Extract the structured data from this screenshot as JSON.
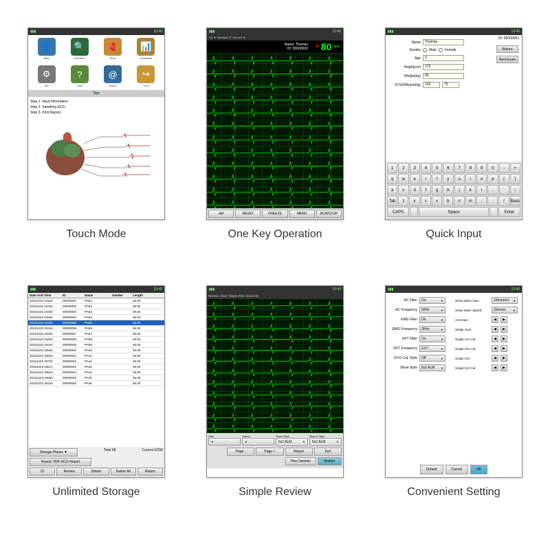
{
  "captions": {
    "touch": "Touch Mode",
    "onekey": "One Key Operation",
    "quick": "Quick Input",
    "storage": "Unlimited Storage",
    "review": "Simple Review",
    "setting": "Convenient Setting"
  },
  "statusbar": {
    "left": "▮▮▮",
    "time": "13:40",
    "signal": "📶"
  },
  "touch": {
    "icons": [
      {
        "bg": "#3876a8",
        "glyph": "👤",
        "label": "New"
      },
      {
        "bg": "#2a6a3c",
        "glyph": "🔍",
        "label": "Retrieve"
      },
      {
        "bg": "#c88838",
        "glyph": "🫀",
        "label": "Phys"
      },
      {
        "bg": "#a8843c",
        "glyph": "📊",
        "label": "Auto/Man"
      },
      {
        "bg": "#787878",
        "glyph": "⚙",
        "label": "Set"
      },
      {
        "bg": "#5a8a3a",
        "glyph": "?",
        "label": "Help"
      },
      {
        "bg": "#356a9a",
        "glyph": "@",
        "label": "About"
      },
      {
        "bg": "#c89838",
        "glyph": "↪",
        "label": "Exit"
      }
    ],
    "tips_label": "Tips",
    "steps": [
      "Step 1. Input Information.",
      "Step 2. Sampling ECG.",
      "Step 3. Print Report."
    ]
  },
  "ecg": {
    "name_label": "Name: Thomas",
    "id_label": "ID: 00000003",
    "hrate": "80",
    "bpm": "bpm",
    "heart": "♥",
    "buttons": [
      "def",
      "RESET",
      "FREEZE",
      "MENU",
      "RUN/STOP"
    ],
    "grid_color": "#0a3a0a",
    "bg_color": "#001a00",
    "trace_color": "#0f0",
    "leads": 12
  },
  "quick": {
    "fields": {
      "name": {
        "label": "Name",
        "value": "Thomas"
      },
      "gender": {
        "label": "Gender",
        "opts": [
          "Male",
          "Female"
        ]
      },
      "age": {
        "label": "Age",
        "value": "0"
      },
      "height": {
        "label": "Height(cm)",
        "value": "170"
      },
      "weight": {
        "label": "Weight(kg)",
        "value": "60"
      },
      "bp": {
        "label": "SYS/DIA(mmHg)",
        "sys": "120",
        "dia": "75"
      }
    },
    "id_label": "ID: 00000003",
    "side_btns": [
      "Return",
      "Next Exam"
    ],
    "keys": {
      "row1": [
        "1",
        "2",
        "3",
        "4",
        "5",
        "6",
        "7",
        "8",
        "9",
        "0",
        "-",
        "="
      ],
      "row2": [
        "q",
        "w",
        "e",
        "r",
        "t",
        "y",
        "u",
        "i",
        "o",
        "p",
        "[",
        "]"
      ],
      "row3": [
        "a",
        "s",
        "d",
        "f",
        "g",
        "h",
        "j",
        "k",
        "l",
        ";",
        "'",
        "\\"
      ],
      "row4": [
        "Tab",
        "z",
        "x",
        "c",
        "v",
        "b",
        "n",
        "m",
        ",",
        ".",
        "/",
        "Back"
      ],
      "row5": [
        "CAPS",
        "",
        "Space",
        "",
        "Enter"
      ]
    }
  },
  "storage": {
    "headers": [
      "Date And Time",
      "ID",
      "Name",
      "Gender",
      "Length"
    ],
    "rows": [
      [
        "20161223 12344",
        "00000001",
        "PAE1",
        "",
        "36.00"
      ],
      [
        "20161223 12444",
        "00000002",
        "PAE2",
        "",
        "36.00"
      ],
      [
        "20161223 24333",
        "00000003",
        "PAE3",
        "",
        "36.00"
      ],
      [
        "20161223 24534",
        "00000004",
        "PAE4",
        "",
        "36.00"
      ],
      [
        "20161223 33322",
        "00000005",
        "PAE5",
        "",
        "36.00"
      ],
      [
        "20161223 33116",
        "00000006",
        "PAE6",
        "",
        "36.00"
      ],
      [
        "20161223 33234",
        "00000007",
        "PAE7",
        "",
        "36.00"
      ],
      [
        "20161223 33424",
        "00000008",
        "PAE8",
        "",
        "36.00"
      ],
      [
        "20161223 33444",
        "00000009",
        "PAE9",
        "",
        "36.00"
      ],
      [
        "20161223 33534",
        "00000040",
        "PA40",
        "",
        "36.00"
      ],
      [
        "20161223 33634",
        "00000041",
        "PA41",
        "",
        "36.00"
      ],
      [
        "20161223 33734",
        "00000042",
        "PA42",
        "",
        "36.00"
      ],
      [
        "20161223 33517",
        "00000043",
        "PA43",
        "",
        "36.00"
      ],
      [
        "20161223 33544",
        "00000044",
        "PA44",
        "",
        "36.00"
      ],
      [
        "20161223 34656",
        "00000045",
        "PA45",
        "",
        "36.00"
      ],
      [
        "20161223 35134",
        "00000046",
        "PA46",
        "",
        "36.00"
      ]
    ],
    "selected": 4,
    "storage_places": "Storage Places ▼",
    "total": "Total 68",
    "current": "Current 6/200",
    "report_btn": "Report: PDF ECG Report",
    "buttons": [
      "ID",
      "Review",
      "Delete",
      "Delete All",
      "Return"
    ]
  },
  "review": {
    "header": "Review: 0043 75bpm  PAE  12x1/3  ID",
    "controls": [
      {
        "label": "Gain",
        "value": ""
      },
      {
        "label": "Speed",
        "value": ""
      },
      {
        "label": "Show Style",
        "value": "6x2 ALM"
      },
      {
        "label": "Report Style",
        "value": "6x2 ALM"
      }
    ],
    "nav": [
      "Page -",
      "Page +",
      "Report",
      "Exit"
    ],
    "btn1": "New Session",
    "btn2": "Bottom"
  },
  "setting": {
    "left": [
      {
        "label": "AC Filter",
        "value": "On"
      },
      {
        "label": "AC Frequency",
        "value": "50Hz"
      },
      {
        "label": "EMG Filter",
        "value": "On"
      },
      {
        "label": "EMG Frequency",
        "value": "35Hz"
      },
      {
        "label": "DFT Filter",
        "value": "On"
      },
      {
        "label": "DFT Frequency",
        "value": "0.67"
      },
      {
        "label": "ECG Cal. Style",
        "value": "Off"
      },
      {
        "label": "Show Style",
        "value": "6x2 ALM"
      }
    ],
    "right": [
      {
        "label": "Show Wave Gain",
        "value": "10mm/mV"
      },
      {
        "label": "Show Wave Speed",
        "value": "25mm/s"
      },
      {
        "label": "Anti Gain",
        "arrows": true
      },
      {
        "label": "Single Gain",
        "arrows": true
      },
      {
        "label": "Single 1ch Cal.",
        "arrows": true
      },
      {
        "label": "Single 2ch Cal.",
        "arrows": true
      },
      {
        "label": "Single Chc",
        "arrows": true
      },
      {
        "label": "Single 2ch Cal.",
        "arrows": true
      }
    ],
    "footer": [
      "Default",
      "Cancel",
      "OK"
    ]
  }
}
